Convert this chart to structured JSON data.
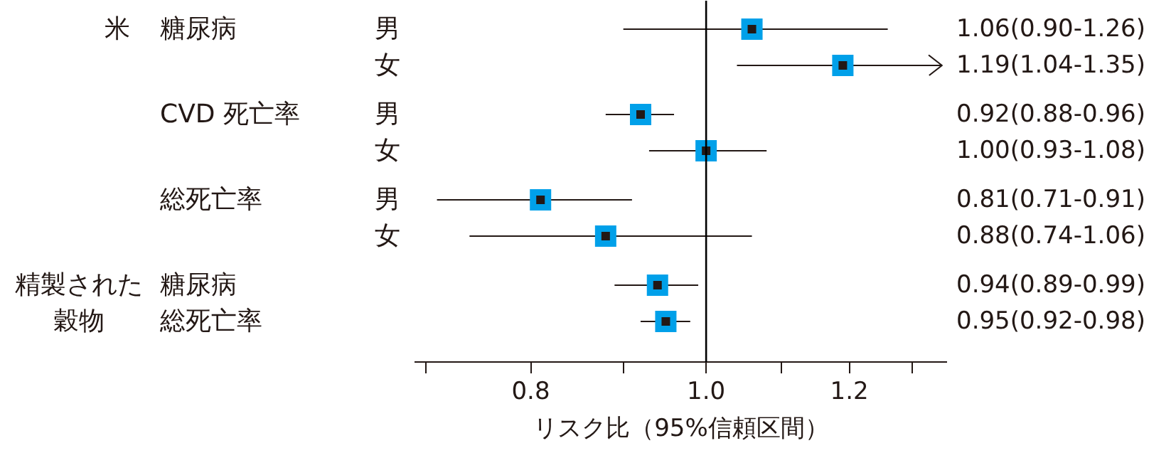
{
  "chart_data": {
    "type": "scatter",
    "orientation": "horizontal",
    "xlabel": "リスク比（95%信頼区間）",
    "categories": [
      "男",
      "女",
      "男",
      "女",
      "男",
      "女",
      null,
      null
    ],
    "values": [
      1.06,
      1.19,
      0.92,
      1.0,
      0.81,
      0.88,
      0.94,
      0.95
    ],
    "errors": [
      [
        0.9,
        1.26
      ],
      [
        1.04,
        1.35
      ],
      [
        0.88,
        0.96
      ],
      [
        0.93,
        1.08
      ],
      [
        0.71,
        0.91
      ],
      [
        0.74,
        1.06
      ],
      [
        0.89,
        0.99
      ],
      [
        0.92,
        0.98
      ]
    ],
    "value_labels": [
      "1.06(0.90-1.26)",
      "1.19(1.04-1.35)",
      "0.92(0.88-0.96)",
      "1.00(0.93-1.08)",
      "0.81(0.71-0.91)",
      "0.88(0.74-1.06)",
      "0.94(0.89-0.99)",
      "0.95(0.92-0.98)"
    ],
    "color": "#00a0e9",
    "marker": "square",
    "log": "x",
    "grid": false,
    "xlim": [
      0.69,
      1.36
    ],
    "xticks": [
      {
        "value": 0.7,
        "label": null
      },
      0.8,
      {
        "value": 0.9,
        "label": null
      },
      {
        "value": 1.0,
        "label": "1.0"
      },
      {
        "value": 1.1,
        "label": null
      },
      1.2,
      {
        "value": 1.3,
        "label": null
      }
    ],
    "ref_lines": [
      {
        "axis": "x",
        "value": 1.0,
        "color": "#000000"
      }
    ],
    "annotations": [
      "米",
      "糖尿病",
      "CVD 死亡率",
      "総死亡率",
      "精製された",
      "穀物",
      "糖尿病",
      "総死亡率"
    ]
  }
}
